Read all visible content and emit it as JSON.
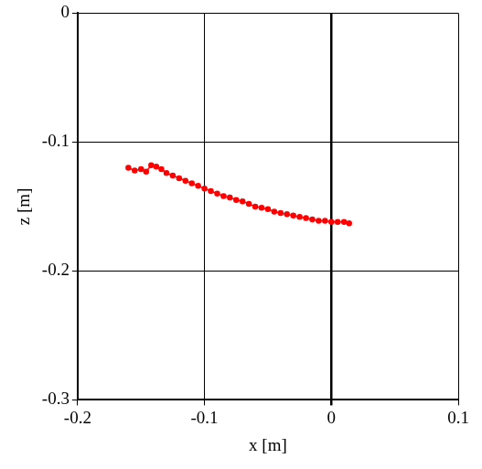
{
  "chart_data": {
    "type": "scatter",
    "x_label": "x [m]",
    "y_label": "z [m]",
    "xlim": [
      -0.2,
      0.1
    ],
    "xticks": [
      -0.2,
      -0.1,
      0,
      0.1
    ],
    "ylim": [
      -0.3,
      0
    ],
    "yticks": [
      -0.3,
      -0.2,
      -0.1,
      0
    ],
    "grid": true,
    "series": [
      {
        "color": "#ff0000",
        "marker": "circle",
        "line_style": "solid",
        "x": [
          -0.16,
          -0.155,
          -0.15,
          -0.146,
          -0.142,
          -0.138,
          -0.134,
          -0.13,
          -0.125,
          -0.12,
          -0.115,
          -0.11,
          -0.105,
          -0.1,
          -0.095,
          -0.09,
          -0.085,
          -0.08,
          -0.075,
          -0.07,
          -0.065,
          -0.06,
          -0.055,
          -0.05,
          -0.045,
          -0.04,
          -0.035,
          -0.03,
          -0.025,
          -0.02,
          -0.015,
          -0.01,
          -0.005,
          0.0,
          0.005,
          0.01,
          0.014
        ],
        "values": [
          -0.12,
          -0.122,
          -0.121,
          -0.123,
          -0.118,
          -0.119,
          -0.121,
          -0.124,
          -0.126,
          -0.128,
          -0.13,
          -0.132,
          -0.134,
          -0.136,
          -0.138,
          -0.14,
          -0.142,
          -0.143,
          -0.145,
          -0.146,
          -0.148,
          -0.15,
          -0.151,
          -0.152,
          -0.154,
          -0.155,
          -0.156,
          -0.157,
          -0.158,
          -0.159,
          -0.16,
          -0.161,
          -0.161,
          -0.162,
          -0.162,
          -0.162,
          -0.163
        ]
      }
    ]
  }
}
